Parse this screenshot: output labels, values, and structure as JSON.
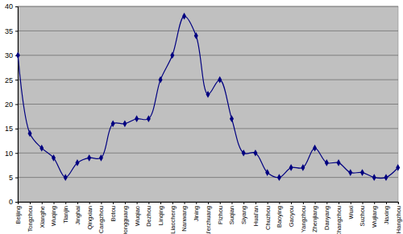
{
  "chart_data": {
    "type": "line",
    "categories": [
      "Beijing",
      "Tongzhou",
      "Xianghe",
      "Wuqing",
      "Tianjin",
      "Jinghai",
      "Qingxian",
      "Cangzhou",
      "Botou",
      "Dongguang",
      "Wuqiao",
      "Dezhou",
      "Linqing",
      "Liaocheng",
      "Nanwang",
      "Jining",
      "Tai'erzhuang",
      "Pizhou",
      "Suqian",
      "Siyang",
      "Huai'an",
      "Chuzhou",
      "Baoying",
      "Gaoyou",
      "Yangzhou",
      "Zhenjiang",
      "Danyang",
      "Changzhou",
      "Wuxi",
      "Suzhou",
      "Wujiang",
      "Jiaxing",
      "Hangzhou"
    ],
    "values": [
      30,
      14,
      11,
      9,
      5,
      8,
      9,
      9,
      16,
      16,
      17,
      17,
      25,
      30,
      38,
      34,
      22,
      25,
      17,
      10,
      10,
      6,
      5,
      7,
      7,
      11,
      8,
      8,
      6,
      6,
      5,
      5,
      7
    ],
    "color": "#000080",
    "marker": "diamond",
    "line_style": "solid",
    "ylim": [
      0,
      40
    ],
    "yticks": [
      0,
      5,
      10,
      15,
      20,
      25,
      30,
      35,
      40
    ],
    "grid": true
  }
}
